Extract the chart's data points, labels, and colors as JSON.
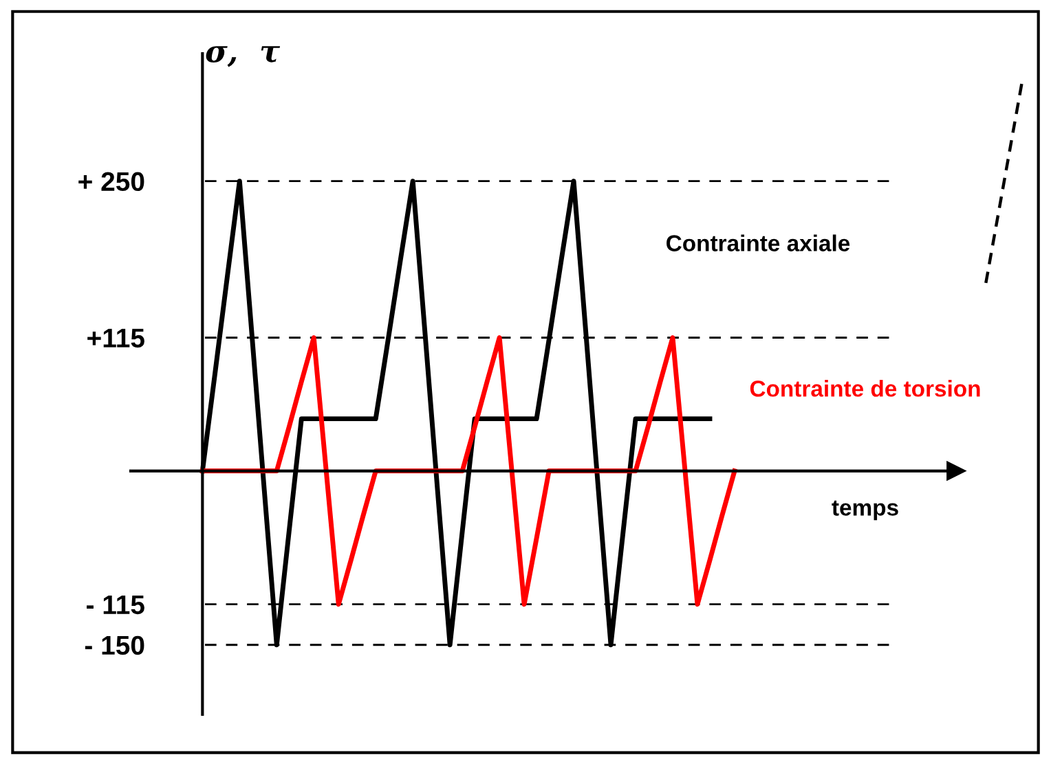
{
  "chart_data": {
    "type": "line",
    "xlabel": "temps",
    "ylabel": "σ,  τ",
    "categories": [
      null,
      null,
      null,
      null,
      null,
      null,
      null,
      null,
      null,
      null,
      null,
      null,
      null,
      null,
      null,
      null,
      null,
      null,
      null,
      null,
      null,
      null,
      null,
      null,
      null,
      null,
      null,
      null,
      null,
      null,
      null,
      null,
      null,
      null,
      null,
      null,
      null,
      null,
      null,
      null,
      null,
      null,
      null,
      null,
      null,
      null,
      null,
      null,
      null,
      null,
      null,
      null,
      null,
      null,
      null,
      null,
      null,
      null,
      null,
      null,
      null
    ],
    "ylim": [
      -210,
      360
    ],
    "yticks": [
      {
        "value": 250,
        "label": "+ 250"
      },
      {
        "value": 115,
        "label": "+115"
      },
      {
        "value": -115,
        "label": "- 115"
      },
      {
        "value": -150,
        "label": "- 150"
      }
    ],
    "tick_labels": "y",
    "legend": false,
    "grid": false,
    "marker": "none",
    "line_style": "solid",
    "ref_lines": [
      {
        "axis": "y",
        "value": 250,
        "color": "#000000",
        "line_style": "dashed"
      },
      {
        "axis": "y",
        "value": 115,
        "color": "#000000",
        "line_style": "dashed"
      },
      {
        "axis": "y",
        "value": -115,
        "color": "#000000",
        "line_style": "dashed"
      },
      {
        "axis": "y",
        "value": -150,
        "color": "#000000",
        "line_style": "dashed"
      }
    ],
    "series": [
      {
        "name": "Contrainte axiale",
        "color": "#000000",
        "values": [
          0,
          83,
          167,
          250,
          117,
          -17,
          -150,
          -52,
          45,
          45,
          45,
          45,
          45,
          45,
          45,
          113,
          182,
          250,
          117,
          -17,
          -150,
          -52,
          45,
          45,
          45,
          45,
          45,
          45,
          113,
          182,
          250,
          117,
          -17,
          -150,
          -52,
          45,
          45,
          45,
          45,
          45,
          45,
          45,
          null,
          null,
          null,
          null,
          null,
          null,
          null,
          null,
          null,
          null,
          null,
          null,
          null,
          null,
          null,
          null,
          null,
          null,
          null
        ]
      },
      {
        "name": "Contrainte de torsion",
        "color": "#ff0000",
        "values": [
          0,
          0,
          0,
          0,
          0,
          0,
          0,
          38,
          77,
          115,
          0,
          -115,
          -77,
          -38,
          0,
          0,
          0,
          0,
          0,
          0,
          0,
          0,
          38,
          77,
          115,
          0,
          -115,
          -58,
          0,
          0,
          0,
          0,
          0,
          0,
          0,
          0,
          38,
          77,
          115,
          0,
          -115,
          -77,
          -38,
          0,
          null,
          null,
          null,
          null,
          null,
          null,
          null,
          null,
          null,
          null,
          null,
          null,
          null,
          null,
          null,
          null,
          null
        ]
      }
    ]
  }
}
